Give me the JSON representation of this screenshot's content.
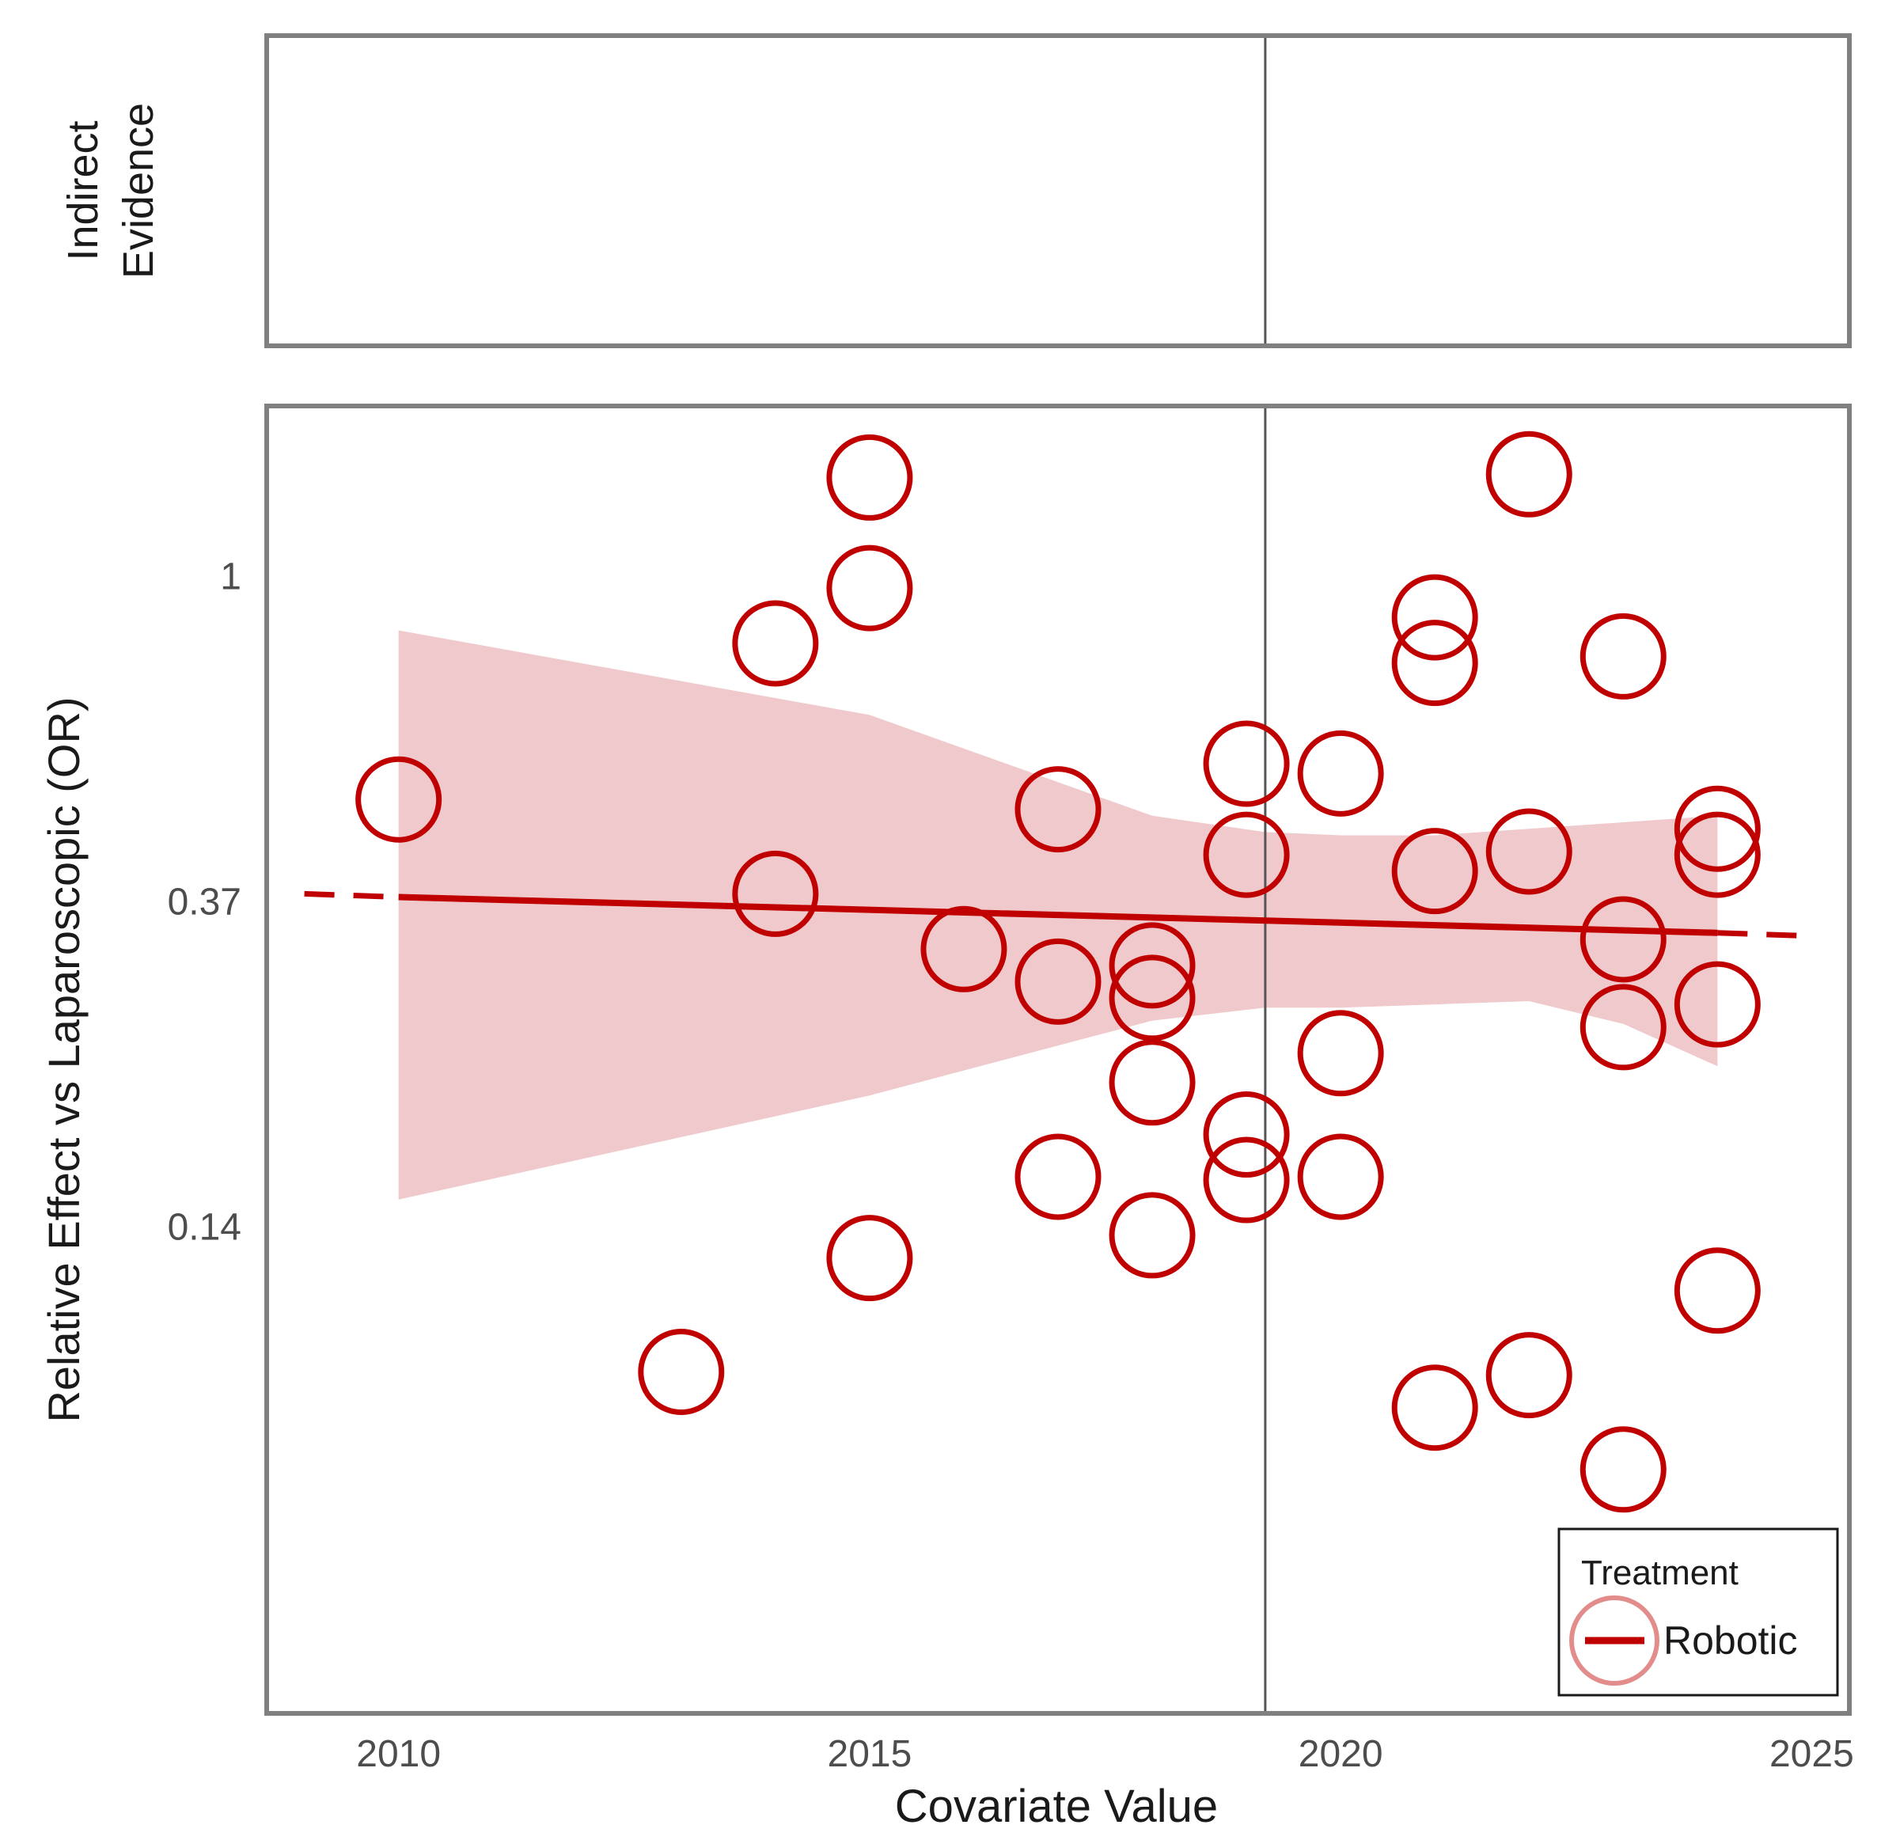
{
  "chart_data": {
    "type": "scatter",
    "title": "",
    "xlabel": "Covariate Value",
    "ylabel": "Relative Effect vs Laparoscopic (OR)",
    "top_panel_label": [
      "Indirect",
      "Evidence"
    ],
    "xlim": [
      2008.6,
      2025.4
    ],
    "ylog_lim": [
      -3.5,
      0.52
    ],
    "x_ticks": [
      2010,
      2015,
      2020,
      2025
    ],
    "x_tick_labels": [
      "2010",
      "2015",
      "2020",
      "2025"
    ],
    "y_ticks_log": [
      0,
      -1,
      -2
    ],
    "y_tick_labels": [
      "1",
      "0.37",
      "0.14"
    ],
    "reference_x": 2019.2,
    "grid": false,
    "legend": {
      "title": "Treatment",
      "entries": [
        "Robotic"
      ],
      "position": "bottom-right"
    },
    "colors": {
      "series": "#c00000",
      "band": "#efc9cb",
      "frame": "#808080",
      "ref_line": "#555555"
    },
    "series": [
      {
        "name": "Robotic",
        "points": [
          {
            "x": 2010,
            "log_or": -0.69
          },
          {
            "x": 2013,
            "log_or": -2.45
          },
          {
            "x": 2014,
            "log_or": -0.21
          },
          {
            "x": 2014,
            "log_or": -0.98
          },
          {
            "x": 2015,
            "log_or": 0.3
          },
          {
            "x": 2015,
            "log_or": -0.04
          },
          {
            "x": 2015,
            "log_or": -2.1
          },
          {
            "x": 2016,
            "log_or": -1.15
          },
          {
            "x": 2017,
            "log_or": -0.72
          },
          {
            "x": 2017,
            "log_or": -1.25
          },
          {
            "x": 2017,
            "log_or": -1.85
          },
          {
            "x": 2018,
            "log_or": -1.2
          },
          {
            "x": 2018,
            "log_or": -1.3
          },
          {
            "x": 2018,
            "log_or": -1.56
          },
          {
            "x": 2018,
            "log_or": -2.03
          },
          {
            "x": 2019,
            "log_or": -0.58
          },
          {
            "x": 2019,
            "log_or": -0.86
          },
          {
            "x": 2019,
            "log_or": -1.72
          },
          {
            "x": 2019,
            "log_or": -1.86
          },
          {
            "x": 2020,
            "log_or": -0.61
          },
          {
            "x": 2020,
            "log_or": -1.47
          },
          {
            "x": 2020,
            "log_or": -1.85
          },
          {
            "x": 2021,
            "log_or": -0.13
          },
          {
            "x": 2021,
            "log_or": -0.27
          },
          {
            "x": 2021,
            "log_or": -0.91
          },
          {
            "x": 2021,
            "log_or": -2.56
          },
          {
            "x": 2022,
            "log_or": 0.31
          },
          {
            "x": 2022,
            "log_or": -0.85
          },
          {
            "x": 2022,
            "log_or": -2.46
          },
          {
            "x": 2023,
            "log_or": -0.25
          },
          {
            "x": 2023,
            "log_or": -1.12
          },
          {
            "x": 2023,
            "log_or": -1.39
          },
          {
            "x": 2023,
            "log_or": -2.75
          },
          {
            "x": 2024,
            "log_or": -0.78
          },
          {
            "x": 2024,
            "log_or": -0.86
          },
          {
            "x": 2024,
            "log_or": -1.32
          },
          {
            "x": 2024,
            "log_or": -2.2
          }
        ]
      }
    ],
    "regression": {
      "x_fit": [
        2010,
        2024
      ],
      "log_or_fit": [
        -0.99,
        -1.1
      ],
      "x_extrap": [
        2009,
        2025
      ],
      "log_or_extrap": [
        -0.98,
        -1.11
      ]
    },
    "confidence_band": {
      "x": [
        2010,
        2015,
        2018,
        2019.2,
        2020,
        2021,
        2022,
        2023,
        2024
      ],
      "log_or_upper": [
        -0.17,
        -0.43,
        -0.74,
        -0.79,
        -0.8,
        -0.8,
        -0.78,
        -0.76,
        -0.74
      ],
      "log_or_lower": [
        -1.92,
        -1.6,
        -1.37,
        -1.33,
        -1.33,
        -1.32,
        -1.31,
        -1.38,
        -1.51
      ]
    }
  }
}
